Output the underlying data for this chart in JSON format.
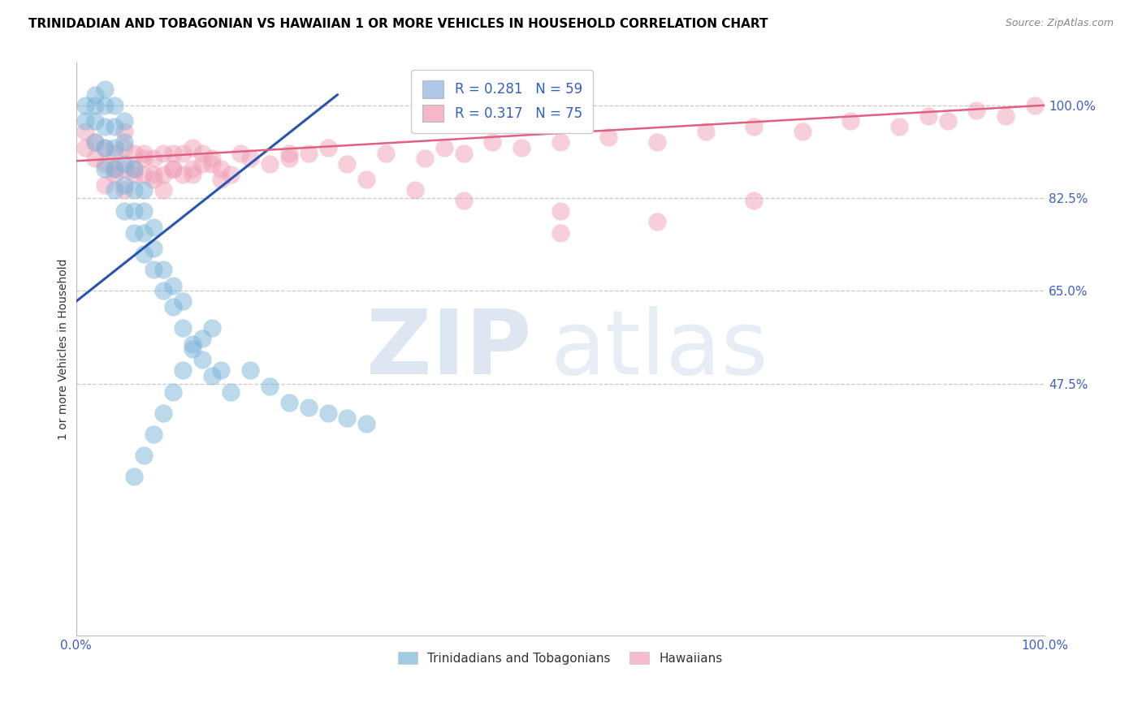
{
  "title": "TRINIDADIAN AND TOBAGONIAN VS HAWAIIAN 1 OR MORE VEHICLES IN HOUSEHOLD CORRELATION CHART",
  "source": "Source: ZipAtlas.com",
  "ylabel": "1 or more Vehicles in Household",
  "xlim": [
    0.0,
    1.0
  ],
  "ylim": [
    0.0,
    1.08
  ],
  "yticks": [
    0.475,
    0.65,
    0.825,
    1.0
  ],
  "ytick_labels": [
    "47.5%",
    "65.0%",
    "82.5%",
    "100.0%"
  ],
  "legend_entries": [
    {
      "label": "R = 0.281   N = 59",
      "color": "#aec6e8"
    },
    {
      "label": "R = 0.317   N = 75",
      "color": "#f4b8c8"
    }
  ],
  "blue_color": "#7ab4d8",
  "pink_color": "#f0a0b8",
  "blue_line_color": "#2855b0",
  "pink_line_color": "#e06080",
  "watermark_zip": "ZIP",
  "watermark_atlas": "atlas",
  "background_color": "#ffffff",
  "grid_color": "#c8c8c8",
  "title_fontsize": 11,
  "axis_fontsize": 10,
  "tick_fontsize": 11,
  "blue_line_x0": 0.0,
  "blue_line_y0": 0.63,
  "blue_line_x1": 0.27,
  "blue_line_y1": 1.02,
  "pink_line_x0": 0.0,
  "pink_line_x1": 1.0,
  "pink_line_y0": 0.895,
  "pink_line_y1": 1.0,
  "blue_scatter_x": [
    0.01,
    0.01,
    0.02,
    0.02,
    0.02,
    0.02,
    0.03,
    0.03,
    0.03,
    0.03,
    0.03,
    0.04,
    0.04,
    0.04,
    0.04,
    0.04,
    0.05,
    0.05,
    0.05,
    0.05,
    0.05,
    0.06,
    0.06,
    0.06,
    0.06,
    0.07,
    0.07,
    0.07,
    0.07,
    0.08,
    0.08,
    0.08,
    0.09,
    0.09,
    0.1,
    0.1,
    0.11,
    0.11,
    0.12,
    0.13,
    0.14,
    0.15,
    0.16,
    0.18,
    0.2,
    0.22,
    0.24,
    0.26,
    0.28,
    0.3,
    0.06,
    0.07,
    0.08,
    0.09,
    0.1,
    0.11,
    0.12,
    0.13,
    0.14
  ],
  "blue_scatter_y": [
    0.97,
    1.0,
    0.93,
    0.97,
    1.0,
    1.02,
    0.88,
    0.92,
    0.96,
    1.0,
    1.03,
    0.84,
    0.88,
    0.92,
    0.96,
    1.0,
    0.8,
    0.85,
    0.89,
    0.93,
    0.97,
    0.76,
    0.8,
    0.84,
    0.88,
    0.72,
    0.76,
    0.8,
    0.84,
    0.69,
    0.73,
    0.77,
    0.65,
    0.69,
    0.62,
    0.66,
    0.58,
    0.63,
    0.55,
    0.52,
    0.49,
    0.5,
    0.46,
    0.5,
    0.47,
    0.44,
    0.43,
    0.42,
    0.41,
    0.4,
    0.3,
    0.34,
    0.38,
    0.42,
    0.46,
    0.5,
    0.54,
    0.56,
    0.58
  ],
  "pink_scatter_x": [
    0.01,
    0.01,
    0.02,
    0.02,
    0.03,
    0.03,
    0.04,
    0.04,
    0.05,
    0.05,
    0.05,
    0.06,
    0.06,
    0.07,
    0.07,
    0.08,
    0.08,
    0.09,
    0.09,
    0.1,
    0.1,
    0.11,
    0.12,
    0.12,
    0.13,
    0.14,
    0.15,
    0.16,
    0.17,
    0.18,
    0.2,
    0.22,
    0.24,
    0.26,
    0.28,
    0.32,
    0.36,
    0.38,
    0.4,
    0.43,
    0.46,
    0.5,
    0.55,
    0.6,
    0.65,
    0.7,
    0.75,
    0.8,
    0.85,
    0.88,
    0.9,
    0.93,
    0.96,
    0.99,
    0.3,
    0.35,
    0.4,
    0.5,
    0.6,
    0.7,
    0.03,
    0.04,
    0.05,
    0.06,
    0.07,
    0.08,
    0.09,
    0.1,
    0.11,
    0.12,
    0.13,
    0.14,
    0.15,
    0.22,
    0.5
  ],
  "pink_scatter_y": [
    0.92,
    0.95,
    0.9,
    0.93,
    0.89,
    0.92,
    0.87,
    0.91,
    0.88,
    0.92,
    0.95,
    0.88,
    0.91,
    0.87,
    0.9,
    0.86,
    0.9,
    0.87,
    0.91,
    0.88,
    0.91,
    0.87,
    0.88,
    0.92,
    0.89,
    0.9,
    0.88,
    0.87,
    0.91,
    0.9,
    0.89,
    0.9,
    0.91,
    0.92,
    0.89,
    0.91,
    0.9,
    0.92,
    0.91,
    0.93,
    0.92,
    0.93,
    0.94,
    0.93,
    0.95,
    0.96,
    0.95,
    0.97,
    0.96,
    0.98,
    0.97,
    0.99,
    0.98,
    1.0,
    0.86,
    0.84,
    0.82,
    0.8,
    0.78,
    0.82,
    0.85,
    0.88,
    0.84,
    0.87,
    0.91,
    0.87,
    0.84,
    0.88,
    0.91,
    0.87,
    0.91,
    0.89,
    0.86,
    0.91,
    0.76
  ]
}
